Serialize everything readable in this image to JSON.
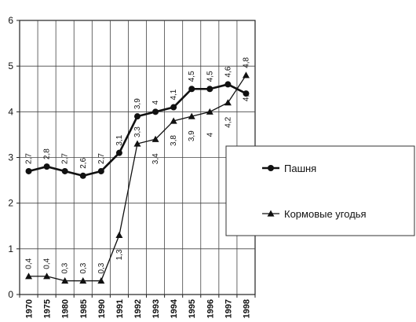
{
  "chart_data": {
    "type": "line",
    "title": "",
    "xlabel": "",
    "ylabel": "",
    "categories": [
      "1970",
      "1975",
      "1980",
      "1985",
      "1990",
      "1991",
      "1992",
      "1993",
      "1994",
      "1995",
      "1996",
      "1997",
      "1998"
    ],
    "ylim": [
      0,
      6
    ],
    "yticks": [
      "0",
      "1",
      "2",
      "3",
      "4",
      "5",
      "6"
    ],
    "grid": true,
    "legend_position": "right",
    "series": [
      {
        "name": "Пашня",
        "marker": "circle",
        "values": [
          2.7,
          2.8,
          2.7,
          2.6,
          2.7,
          3.1,
          3.9,
          4.0,
          4.1,
          4.5,
          4.5,
          4.6,
          4.4
        ],
        "labels": [
          "2,7",
          "2,8",
          "2,7",
          "2,6",
          "2,7",
          "3,1",
          "3,9",
          "4",
          "4,1",
          "4,5",
          "4,5",
          "4,6",
          "4,4"
        ]
      },
      {
        "name": "Кормовые угодья",
        "marker": "triangle",
        "values": [
          0.4,
          0.4,
          0.3,
          0.3,
          0.3,
          1.3,
          3.3,
          3.4,
          3.8,
          3.9,
          4.0,
          4.2,
          4.8
        ],
        "labels": [
          "0,4",
          "0,4",
          "0,3",
          "0,3",
          "0,3",
          "1,3",
          "3,3",
          "3,4",
          "3,8",
          "3,9",
          "4",
          "4,2",
          "4,8"
        ]
      }
    ]
  }
}
